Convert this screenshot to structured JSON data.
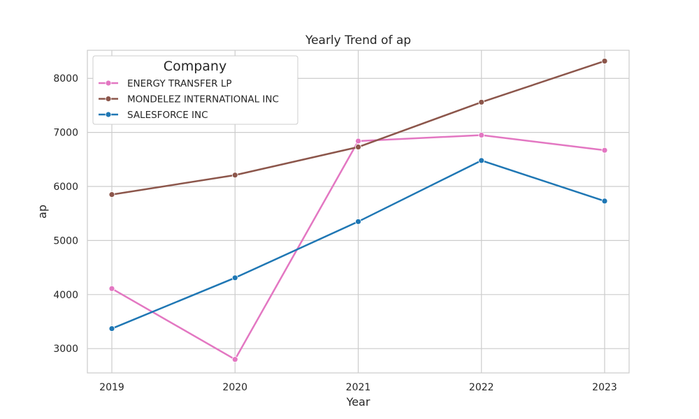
{
  "chart_data": {
    "type": "line",
    "title": "Yearly Trend of ap",
    "xlabel": "Year",
    "ylabel": "ap",
    "x": [
      "2019",
      "2020",
      "2021",
      "2022",
      "2023"
    ],
    "yticks": [
      "3000",
      "4000",
      "5000",
      "6000",
      "7000",
      "8000"
    ],
    "ylim": [
      2550,
      8520
    ],
    "grid": true,
    "legend": {
      "title": "Company",
      "placement": "top-left"
    },
    "series": [
      {
        "name": "ENERGY TRANSFER LP",
        "color": "#e377c2",
        "values": [
          4110,
          2800,
          6840,
          6950,
          6670
        ]
      },
      {
        "name": "MONDELEZ INTERNATIONAL INC",
        "color": "#8c564b",
        "values": [
          5850,
          6210,
          6730,
          7560,
          8320
        ]
      },
      {
        "name": "SALESFORCE INC",
        "color": "#1f77b4",
        "values": [
          3370,
          4310,
          5350,
          6480,
          5730
        ]
      }
    ]
  }
}
